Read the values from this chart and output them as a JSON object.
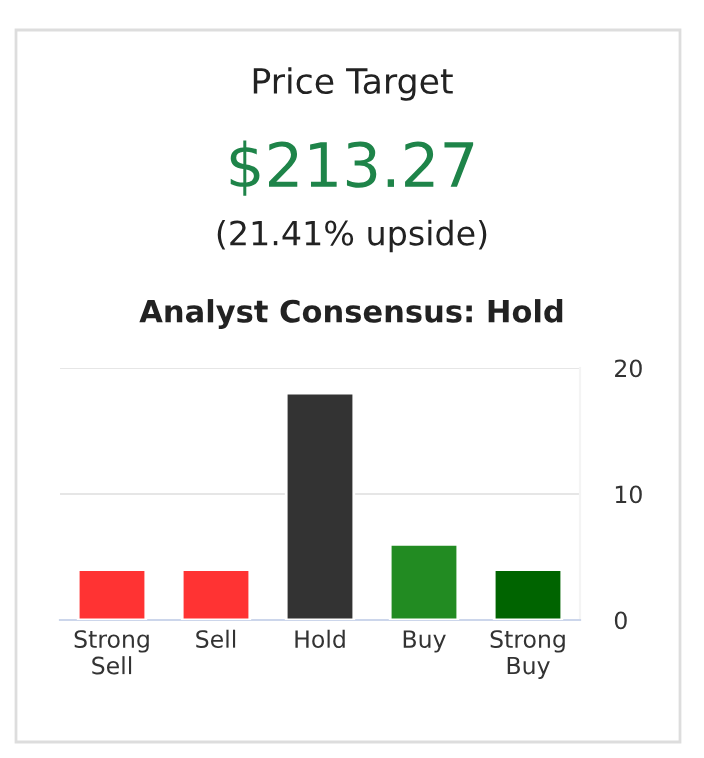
{
  "chart_data": {
    "type": "bar",
    "title": "Price Target",
    "annotations": [
      "$213.27",
      "(21.41% upside)",
      "Analyst Consensus: Hold"
    ],
    "categories": [
      "Strong\nSell",
      "Sell",
      "Hold",
      "Buy",
      "Strong\nBuy"
    ],
    "values": [
      4,
      4,
      18,
      6,
      4
    ],
    "colors": [
      "#ff3333",
      "#ff3333",
      "#333333",
      "#228b22",
      "#006400"
    ],
    "ylim": [
      0,
      20
    ],
    "yticks": [
      0,
      10,
      20
    ],
    "grid": "y",
    "legend": false
  }
}
